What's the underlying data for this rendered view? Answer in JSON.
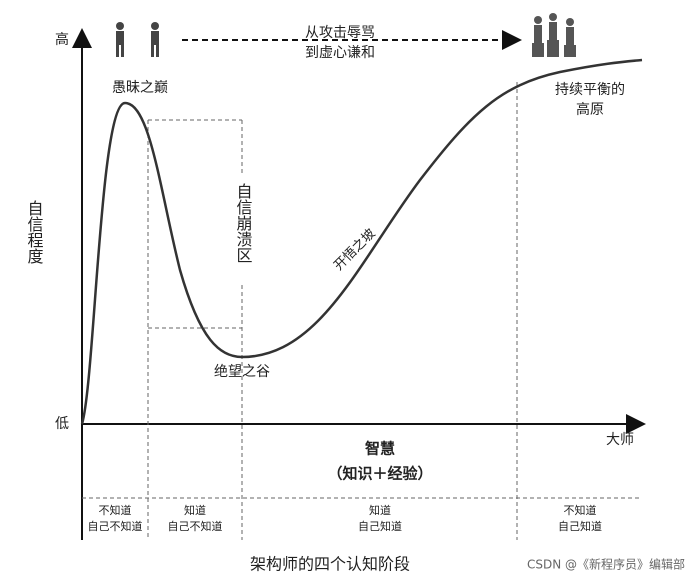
{
  "axis": {
    "y_high": "高",
    "y_low": "低",
    "y_label": "自信程度",
    "x_end": "大师",
    "x_label": "智慧",
    "x_sublabel": "（知识＋经验）"
  },
  "regions": {
    "peak": "愚昧之巅",
    "transition": [
      "从攻击辱骂",
      "到虚心谦和"
    ],
    "plateau": [
      "持续平衡的",
      "高原"
    ],
    "collapse": "自信崩溃区",
    "slope": "开悟之坡",
    "valley": "绝望之谷"
  },
  "stages": [
    [
      "不知道",
      "自己不知道"
    ],
    [
      "知道",
      "自己不知道"
    ],
    [
      "知道",
      "自己知道"
    ],
    [
      "不知道",
      "自己知道"
    ]
  ],
  "caption": "架构师的四个认知阶段",
  "watermark": "CSDN @《新程序员》编辑部"
}
